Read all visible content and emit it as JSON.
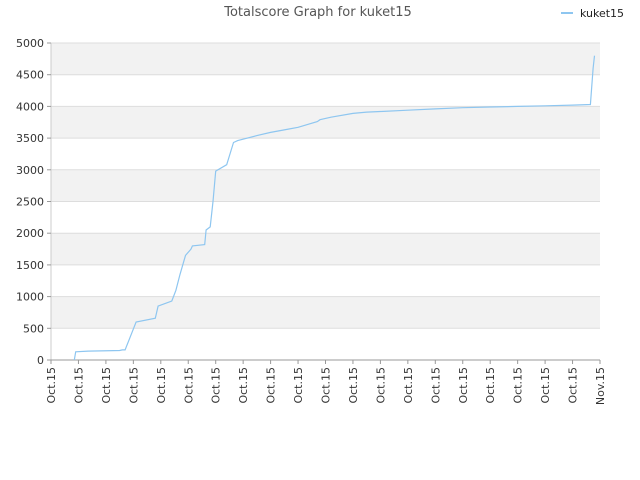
{
  "chart_data": {
    "type": "line",
    "title": "Totalscore Graph for kuket15",
    "legend": {
      "position": "top-right",
      "entries": [
        "kuket15"
      ]
    },
    "xlabel": "",
    "ylabel": "",
    "grid": true,
    "ylim": [
      0,
      5000
    ],
    "y_ticks": [
      "0",
      "500",
      "1000",
      "1500",
      "2000",
      "2500",
      "3000",
      "3500",
      "4000",
      "4500",
      "5000"
    ],
    "x_ticks": [
      "Oct.15",
      "Oct.15",
      "Oct.15",
      "Oct.15",
      "Oct.15",
      "Oct.15",
      "Oct.15",
      "Oct.15",
      "Oct.15",
      "Oct.15",
      "Oct.15",
      "Oct.15",
      "Oct.15",
      "Oct.15",
      "Oct.15",
      "Oct.15",
      "Oct.15",
      "Oct.15",
      "Oct.15",
      "Oct.15",
      "Nov.15"
    ],
    "colors": {
      "series": "#8ec6f0",
      "band": "#f2f2f2",
      "grid": "#dddddd"
    },
    "series": [
      {
        "name": "kuket15",
        "x": [
          0.85,
          0.9,
          1.35,
          2.5,
          2.6,
          2.7,
          3.1,
          3.8,
          3.9,
          4.4,
          4.55,
          4.7,
          4.9,
          5.1,
          5.15,
          5.6,
          5.65,
          5.8,
          5.9,
          6.0,
          6.4,
          6.65,
          6.8,
          7.5,
          8.0,
          8.5,
          9.0,
          9.7,
          9.8,
          10.2,
          11.0,
          11.5,
          12.0,
          13.0,
          14.0,
          15.0,
          16.0,
          17.0,
          18.0,
          19.0,
          19.65,
          19.75,
          19.8
        ],
        "y": [
          0,
          130,
          140,
          150,
          160,
          160,
          600,
          660,
          850,
          930,
          1100,
          1350,
          1650,
          1750,
          1800,
          1820,
          2050,
          2100,
          2500,
          2980,
          3080,
          3430,
          3460,
          3540,
          3590,
          3630,
          3670,
          3760,
          3790,
          3830,
          3890,
          3910,
          3920,
          3940,
          3960,
          3980,
          3990,
          4000,
          4010,
          4020,
          4030,
          4600,
          4800
        ]
      }
    ]
  }
}
